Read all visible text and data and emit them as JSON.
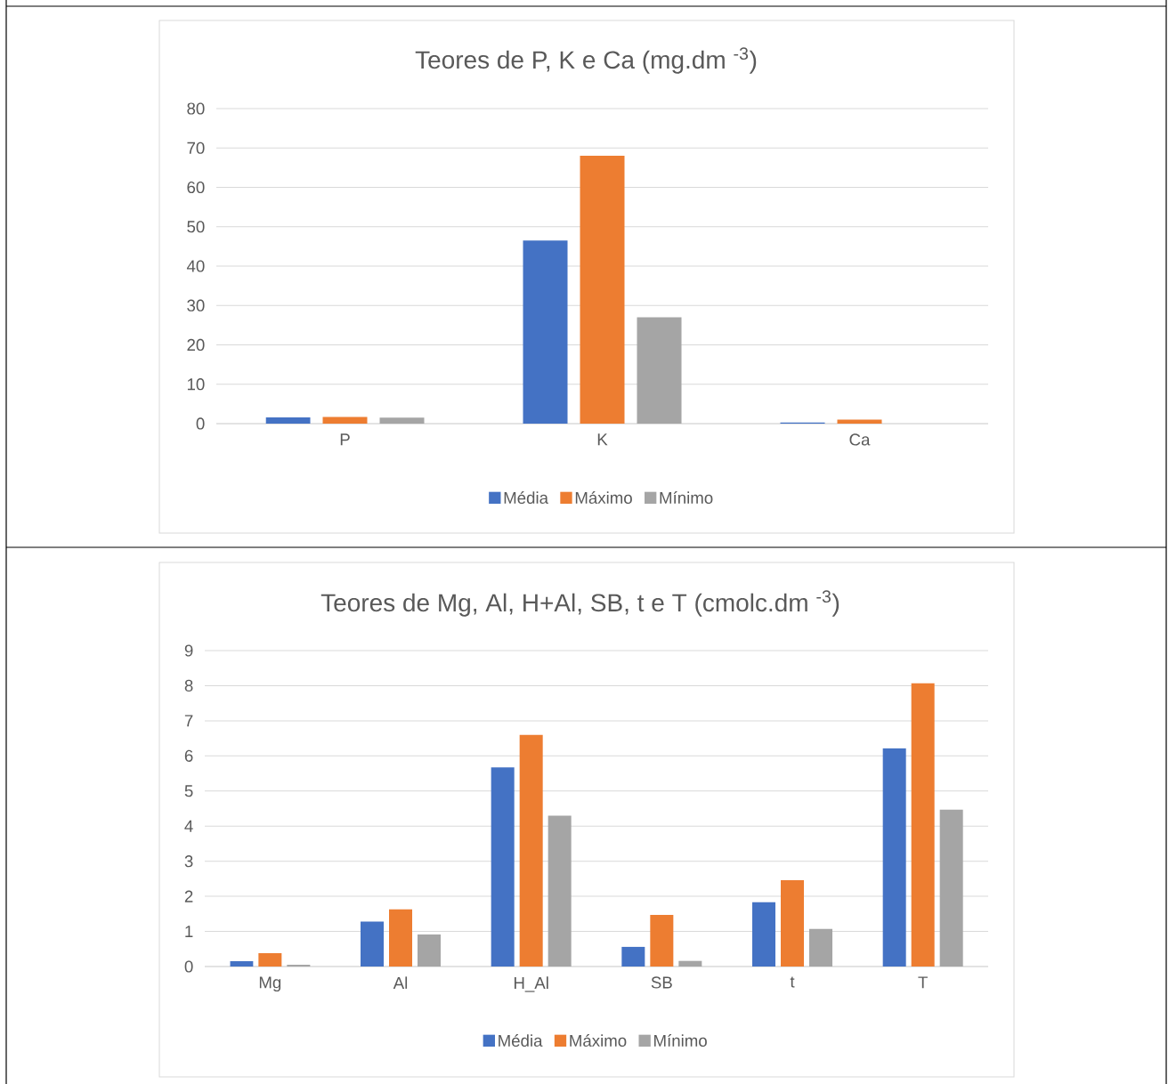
{
  "chart_data": [
    {
      "type": "bar",
      "title": "Teores de P, K e Ca (mg.dm $^{-3}$)",
      "categories": [
        "P",
        "K",
        "Ca"
      ],
      "series": [
        {
          "name": "Média",
          "color": "#4472c4",
          "values": [
            1.6,
            46.5,
            0.3
          ]
        },
        {
          "name": "Máximo",
          "color": "#ed7d31",
          "values": [
            1.7,
            68,
            1.0
          ]
        },
        {
          "name": "Mínimo",
          "color": "#a5a5a5",
          "values": [
            1.5,
            27,
            0
          ]
        }
      ],
      "ylim": [
        0,
        80
      ],
      "yticks": [
        0,
        10,
        20,
        30,
        40,
        50,
        60,
        70,
        80
      ],
      "grid": "y",
      "legend": "bottom"
    },
    {
      "type": "bar",
      "title": "Teores de Mg, Al, H+Al, SB, t e T (cmolc.dm $^{-3}$)",
      "categories": [
        "Mg",
        "Al",
        "H_Al",
        "SB",
        "t",
        "T"
      ],
      "series": [
        {
          "name": "Média",
          "color": "#4472c4",
          "values": [
            0.15,
            1.28,
            5.67,
            0.56,
            1.83,
            6.22
          ]
        },
        {
          "name": "Máximo",
          "color": "#ed7d31",
          "values": [
            0.38,
            1.63,
            6.6,
            1.47,
            2.46,
            8.07
          ]
        },
        {
          "name": "Mínimo",
          "color": "#a5a5a5",
          "values": [
            0.05,
            0.91,
            4.3,
            0.16,
            1.07,
            4.47
          ]
        }
      ],
      "ylim": [
        0,
        9
      ],
      "yticks": [
        0,
        1,
        2,
        3,
        4,
        5,
        6,
        7,
        8,
        9
      ],
      "grid": "y",
      "legend": "bottom"
    }
  ]
}
